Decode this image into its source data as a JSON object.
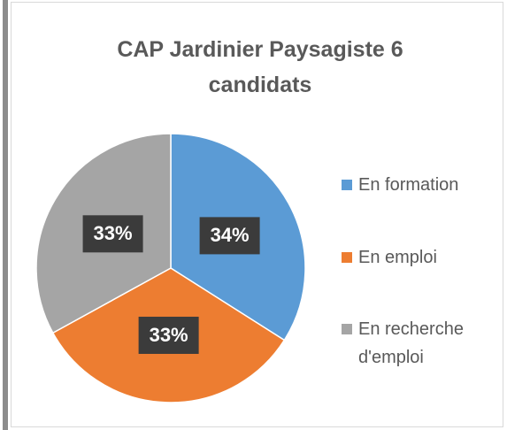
{
  "chart_data": {
    "type": "pie",
    "title": "CAP Jardinier Paysagiste 6 candidats",
    "categories": [
      "En formation",
      "En emploi",
      "En recherche d'emploi"
    ],
    "values": [
      34,
      33,
      33
    ],
    "value_labels": [
      "34%",
      "33%",
      "33%"
    ],
    "colors": [
      "#5b9bd5",
      "#ed7d31",
      "#a5a5a5"
    ],
    "legend": "right"
  }
}
